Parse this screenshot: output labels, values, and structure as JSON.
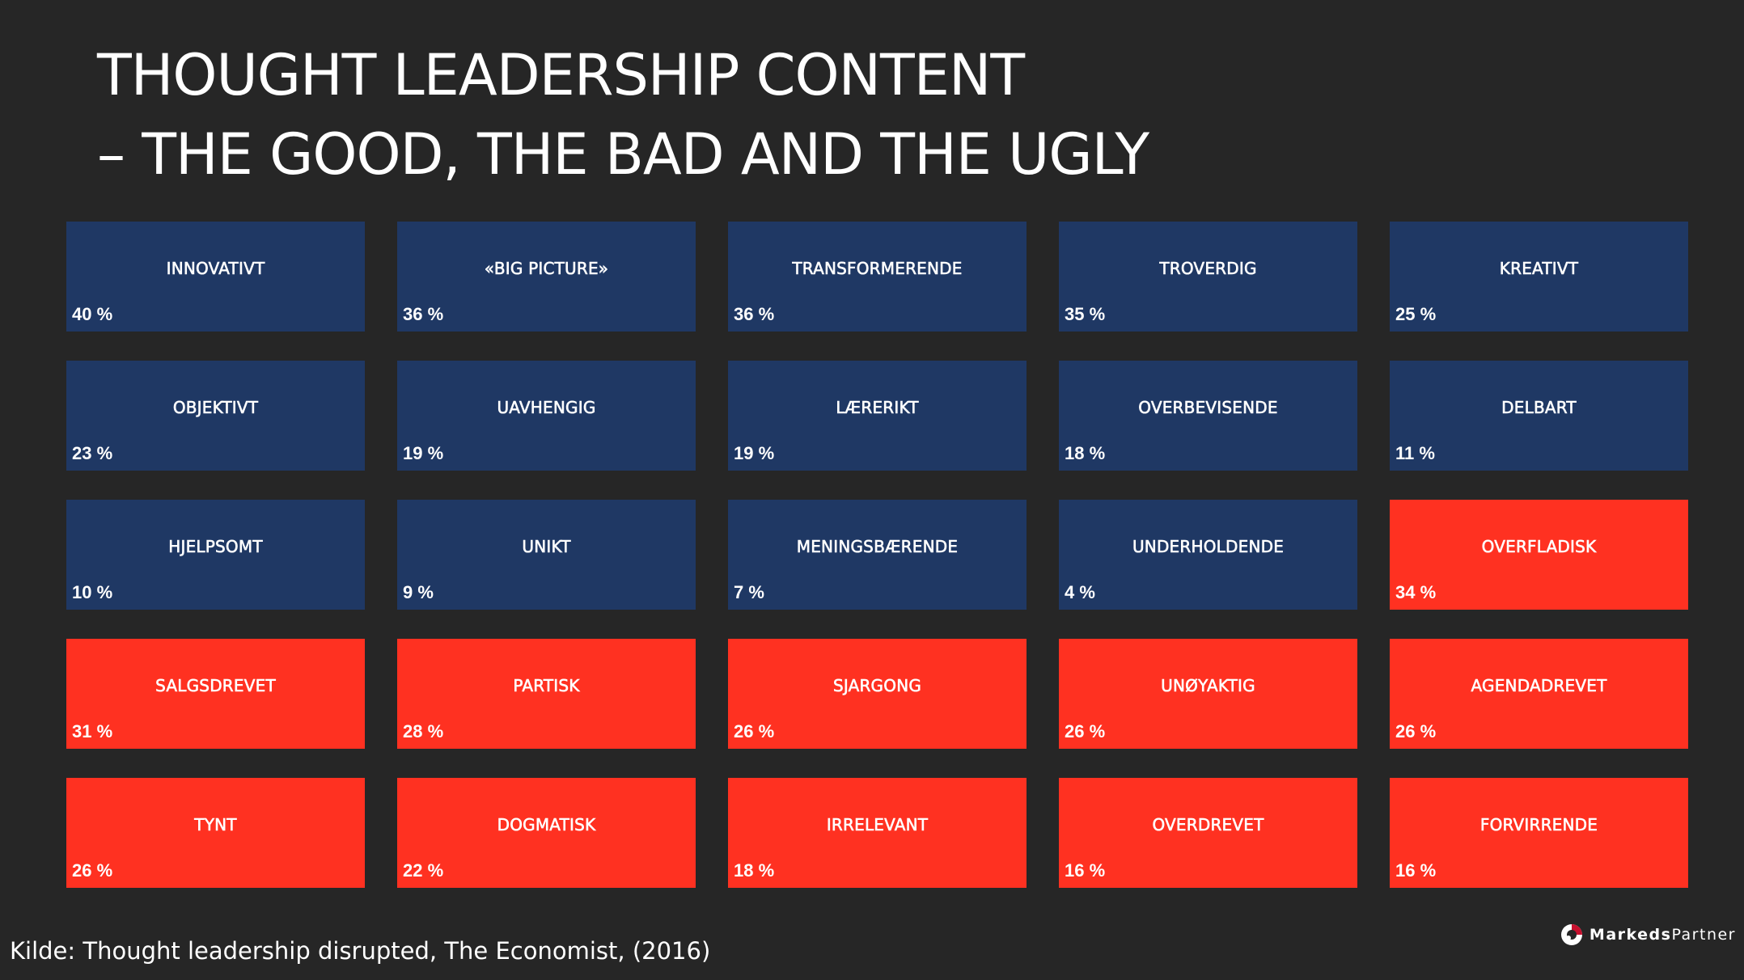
{
  "title": {
    "line1": "THOUGHT LEADERSHIP CONTENT",
    "line2": "– THE GOOD, THE BAD AND THE UGLY"
  },
  "colors": {
    "positive": "#1f3864",
    "negative": "#ff3121",
    "background": "#262626"
  },
  "tiles": [
    {
      "label": "INNOVATIVT",
      "pct": "40 %",
      "kind": "positive"
    },
    {
      "label": "«BIG PICTURE»",
      "pct": "36 %",
      "kind": "positive"
    },
    {
      "label": "TRANSFORMERENDE",
      "pct": "36 %",
      "kind": "positive"
    },
    {
      "label": "TROVERDIG",
      "pct": "35 %",
      "kind": "positive"
    },
    {
      "label": "KREATIVT",
      "pct": "25 %",
      "kind": "positive"
    },
    {
      "label": "OBJEKTIVT",
      "pct": "23 %",
      "kind": "positive"
    },
    {
      "label": "UAVHENGIG",
      "pct": "19 %",
      "kind": "positive"
    },
    {
      "label": "LÆRERIKT",
      "pct": "19 %",
      "kind": "positive"
    },
    {
      "label": "OVERBEVISENDE",
      "pct": "18 %",
      "kind": "positive"
    },
    {
      "label": "DELBART",
      "pct": "11 %",
      "kind": "positive"
    },
    {
      "label": "HJELPSOMT",
      "pct": "10 %",
      "kind": "positive"
    },
    {
      "label": "UNIKT",
      "pct": "9 %",
      "kind": "positive"
    },
    {
      "label": "MENINGSBÆRENDE",
      "pct": "7 %",
      "kind": "positive"
    },
    {
      "label": "UNDERHOLDENDE",
      "pct": "4 %",
      "kind": "positive"
    },
    {
      "label": "OVERFLADISK",
      "pct": "34 %",
      "kind": "negative"
    },
    {
      "label": "SALGSDREVET",
      "pct": "31 %",
      "kind": "negative"
    },
    {
      "label": "PARTISK",
      "pct": "28 %",
      "kind": "negative"
    },
    {
      "label": "SJARGONG",
      "pct": "26 %",
      "kind": "negative"
    },
    {
      "label": "UNØYAKTIG",
      "pct": "26 %",
      "kind": "negative"
    },
    {
      "label": "AGENDADREVET",
      "pct": "26 %",
      "kind": "negative"
    },
    {
      "label": "TYNT",
      "pct": "26 %",
      "kind": "negative"
    },
    {
      "label": "DOGMATISK",
      "pct": "22 %",
      "kind": "negative"
    },
    {
      "label": "IRRELEVANT",
      "pct": "18 %",
      "kind": "negative"
    },
    {
      "label": "OVERDREVET",
      "pct": "16 %",
      "kind": "negative"
    },
    {
      "label": "FORVIRRENDE",
      "pct": "16 %",
      "kind": "negative"
    }
  ],
  "source": "Kilde: Thought leadership disrupted, The Economist, (2016)",
  "brand": {
    "bold": "Markeds",
    "regular": "Partner",
    "icon": "markedspartner-logo-icon"
  }
}
